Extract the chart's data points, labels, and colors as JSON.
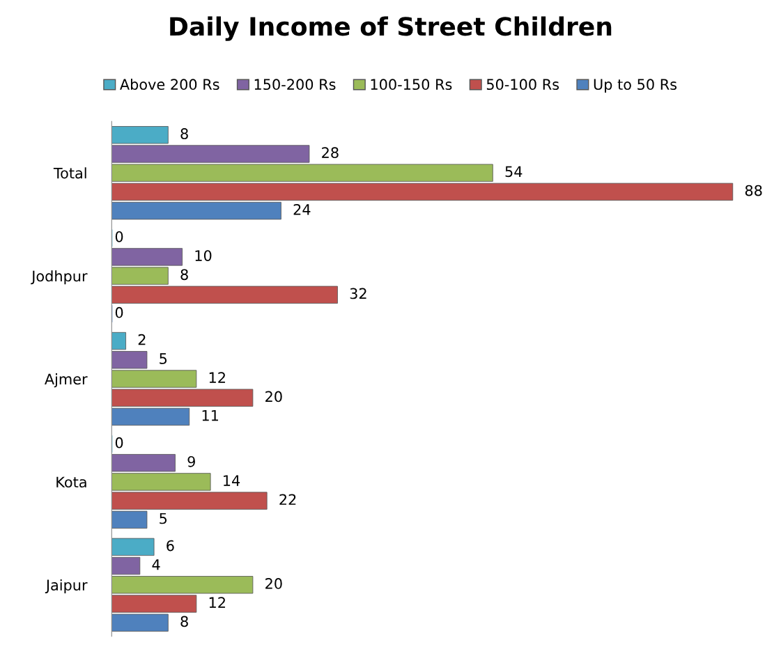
{
  "chart_data": {
    "type": "bar",
    "orientation": "horizontal",
    "title": "Daily Income of Street Children",
    "categories": [
      "Total",
      "Jodhpur",
      "Ajmer",
      "Kota",
      "Jaipur"
    ],
    "series": [
      {
        "name": "Above 200 Rs",
        "color": "#4bacc6",
        "values": [
          8,
          0,
          2,
          0,
          6
        ]
      },
      {
        "name": "150-200 Rs",
        "color": "#8064a2",
        "values": [
          28,
          10,
          5,
          9,
          4
        ]
      },
      {
        "name": "100-150 Rs",
        "color": "#9bbb59",
        "values": [
          54,
          8,
          12,
          14,
          20
        ]
      },
      {
        "name": "50-100 Rs",
        "color": "#c0504d",
        "values": [
          88,
          32,
          20,
          22,
          12
        ]
      },
      {
        "name": "Up to 50 Rs",
        "color": "#4f81bd",
        "values": [
          24,
          0,
          11,
          5,
          8
        ]
      }
    ],
    "tick_labels": "y",
    "data_labels": true,
    "legend": "top",
    "grid": false
  }
}
